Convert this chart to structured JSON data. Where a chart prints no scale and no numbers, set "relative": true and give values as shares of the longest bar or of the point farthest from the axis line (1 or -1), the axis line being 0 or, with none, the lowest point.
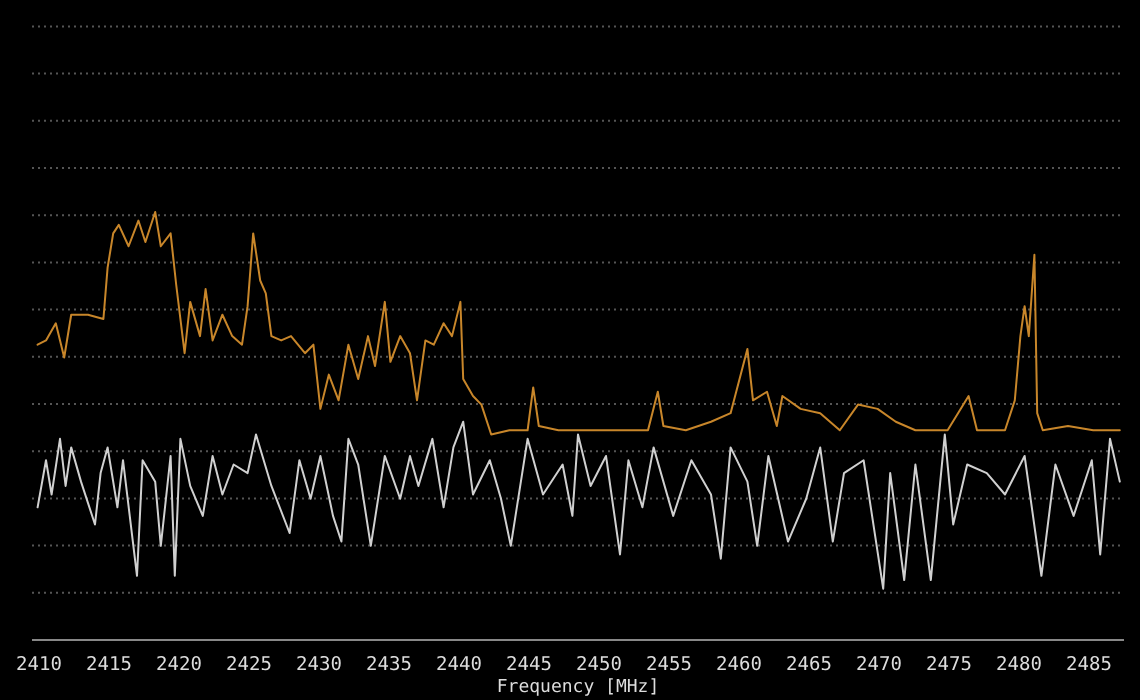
{
  "chart_data": {
    "type": "line",
    "xlabel": "Frequency [MHz]",
    "relative": true,
    "grid": "y",
    "marker": "none",
    "line_style": "solid",
    "xlim": [
      2409.5,
      2487.5
    ],
    "xticks": [
      2410,
      2415,
      2420,
      2425,
      2430,
      2435,
      2440,
      2445,
      2450,
      2455,
      2460,
      2465,
      2470,
      2475,
      2480,
      2485
    ],
    "series": [
      {
        "color": "#c8862a",
        "x": [
          2409.9,
          2410.5,
          2411.2,
          2411.8,
          2412.3,
          2413.5,
          2414.6,
          2414.9,
          2415.3,
          2415.7,
          2416.4,
          2417.1,
          2417.6,
          2418.3,
          2418.7,
          2419.4,
          2419.8,
          2420.4,
          2420.8,
          2421.5,
          2421.9,
          2422.4,
          2423.1,
          2423.8,
          2424.5,
          2424.9,
          2425.3,
          2425.8,
          2426.2,
          2426.6,
          2427.3,
          2428.0,
          2429.0,
          2429.6,
          2430.1,
          2430.7,
          2431.4,
          2432.1,
          2432.8,
          2433.5,
          2434.0,
          2434.7,
          2435.1,
          2435.8,
          2436.5,
          2437.0,
          2437.6,
          2438.2,
          2438.9,
          2439.5,
          2440.1,
          2440.3,
          2441.0,
          2441.6,
          2442.3,
          2443.6,
          2444.9,
          2445.3,
          2445.7,
          2447.1,
          2449.4,
          2451.7,
          2453.5,
          2454.2,
          2454.6,
          2456.2,
          2458.0,
          2459.4,
          2460.6,
          2461.0,
          2462.0,
          2462.7,
          2463.1,
          2464.4,
          2465.8,
          2467.2,
          2468.5,
          2469.9,
          2471.2,
          2472.6,
          2474.9,
          2476.4,
          2477.0,
          2479.0,
          2479.7,
          2480.1,
          2480.4,
          2480.7,
          2481.1,
          2481.3,
          2481.7,
          2483.5,
          2485.3,
          2487.2
        ],
        "values": [
          0.69,
          0.7,
          0.74,
          0.66,
          0.76,
          0.76,
          0.75,
          0.87,
          0.95,
          0.97,
          0.92,
          0.98,
          0.93,
          1.0,
          0.92,
          0.95,
          0.83,
          0.67,
          0.79,
          0.71,
          0.82,
          0.7,
          0.76,
          0.71,
          0.69,
          0.78,
          0.95,
          0.84,
          0.81,
          0.71,
          0.7,
          0.71,
          0.67,
          0.69,
          0.54,
          0.62,
          0.56,
          0.69,
          0.61,
          0.71,
          0.64,
          0.79,
          0.65,
          0.71,
          0.67,
          0.56,
          0.7,
          0.69,
          0.74,
          0.71,
          0.79,
          0.61,
          0.57,
          0.55,
          0.48,
          0.49,
          0.49,
          0.59,
          0.5,
          0.49,
          0.49,
          0.49,
          0.49,
          0.58,
          0.5,
          0.49,
          0.51,
          0.53,
          0.68,
          0.56,
          0.58,
          0.5,
          0.57,
          0.54,
          0.53,
          0.49,
          0.55,
          0.54,
          0.51,
          0.49,
          0.49,
          0.57,
          0.49,
          0.49,
          0.56,
          0.71,
          0.78,
          0.71,
          0.9,
          0.53,
          0.49,
          0.5,
          0.49,
          0.49
        ]
      },
      {
        "color": "#d0d0d0",
        "x": [
          2409.9,
          2410.5,
          2410.9,
          2411.5,
          2411.9,
          2412.3,
          2413.0,
          2414.0,
          2414.4,
          2414.9,
          2415.6,
          2416.0,
          2417.0,
          2417.4,
          2418.3,
          2418.7,
          2419.4,
          2419.7,
          2420.1,
          2420.8,
          2421.7,
          2422.4,
          2423.1,
          2423.9,
          2424.9,
          2425.5,
          2426.6,
          2427.9,
          2428.6,
          2429.4,
          2430.1,
          2431.0,
          2431.6,
          2432.1,
          2432.8,
          2433.7,
          2434.7,
          2435.8,
          2436.5,
          2437.1,
          2438.1,
          2438.9,
          2439.6,
          2440.3,
          2441.0,
          2442.2,
          2443.0,
          2443.7,
          2444.9,
          2446.0,
          2447.4,
          2448.1,
          2448.5,
          2449.4,
          2450.5,
          2451.5,
          2452.1,
          2453.1,
          2453.9,
          2455.3,
          2456.6,
          2458.0,
          2458.7,
          2459.4,
          2460.6,
          2461.3,
          2462.1,
          2463.5,
          2464.8,
          2465.8,
          2466.7,
          2467.5,
          2468.9,
          2470.3,
          2470.8,
          2471.8,
          2472.6,
          2473.7,
          2474.7,
          2475.3,
          2476.3,
          2477.7,
          2479.0,
          2480.4,
          2481.6,
          2482.6,
          2483.9,
          2485.2,
          2485.8,
          2486.5,
          2487.2
        ],
        "values": [
          0.31,
          0.42,
          0.34,
          0.47,
          0.36,
          0.45,
          0.37,
          0.27,
          0.39,
          0.45,
          0.31,
          0.42,
          0.15,
          0.42,
          0.37,
          0.22,
          0.43,
          0.15,
          0.47,
          0.36,
          0.29,
          0.43,
          0.34,
          0.41,
          0.39,
          0.48,
          0.36,
          0.25,
          0.42,
          0.33,
          0.43,
          0.29,
          0.23,
          0.47,
          0.41,
          0.22,
          0.43,
          0.33,
          0.43,
          0.36,
          0.47,
          0.31,
          0.45,
          0.51,
          0.34,
          0.42,
          0.33,
          0.22,
          0.47,
          0.34,
          0.41,
          0.29,
          0.48,
          0.36,
          0.43,
          0.2,
          0.42,
          0.31,
          0.45,
          0.29,
          0.42,
          0.34,
          0.19,
          0.45,
          0.37,
          0.22,
          0.43,
          0.23,
          0.33,
          0.45,
          0.23,
          0.39,
          0.42,
          0.12,
          0.39,
          0.14,
          0.41,
          0.14,
          0.48,
          0.27,
          0.41,
          0.39,
          0.34,
          0.43,
          0.15,
          0.41,
          0.29,
          0.42,
          0.2,
          0.47,
          0.37
        ]
      }
    ]
  }
}
